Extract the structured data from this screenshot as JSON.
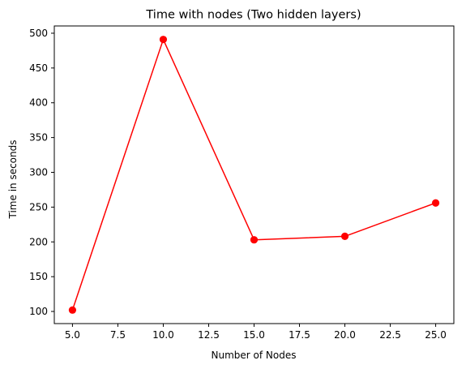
{
  "chart_data": {
    "type": "line",
    "title": "Time with nodes (Two hidden layers)",
    "xlabel": "Number of Nodes",
    "ylabel": "Time in seconds",
    "x": [
      5,
      10,
      15,
      20,
      25
    ],
    "series": [
      {
        "values": [
          102,
          491,
          203,
          208,
          256
        ],
        "color": "#ff0000",
        "marker": "circle"
      }
    ],
    "xlim": [
      4,
      26
    ],
    "ylim": [
      82.55,
      510.45
    ],
    "xticks": [
      5.0,
      7.5,
      10.0,
      12.5,
      15.0,
      17.5,
      20.0,
      22.5,
      25.0
    ],
    "xtick_labels": [
      "5.0",
      "7.5",
      "10.0",
      "12.5",
      "15.0",
      "17.5",
      "20.0",
      "22.5",
      "25.0"
    ],
    "yticks": [
      100,
      150,
      200,
      250,
      300,
      350,
      400,
      450,
      500
    ],
    "ytick_labels": [
      "100",
      "150",
      "200",
      "250",
      "300",
      "350",
      "400",
      "450",
      "500"
    ],
    "grid": false,
    "legend": "none"
  }
}
